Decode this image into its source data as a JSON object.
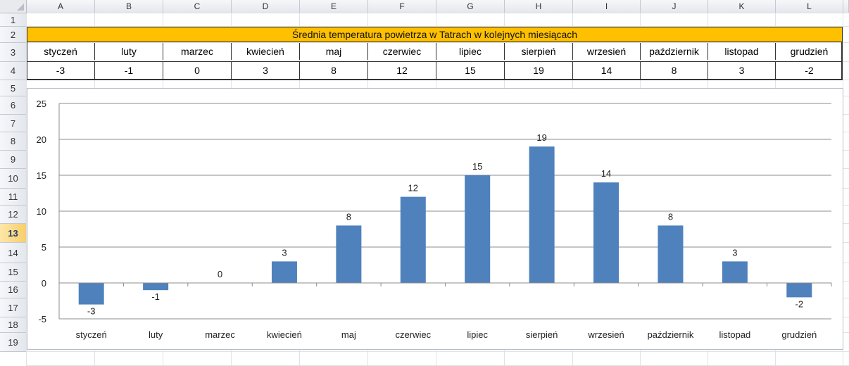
{
  "sheet": {
    "columns": [
      "A",
      "B",
      "C",
      "D",
      "E",
      "F",
      "G",
      "H",
      "I",
      "J",
      "K",
      "L"
    ],
    "rows": [
      "1",
      "2",
      "3",
      "4",
      "5",
      "6",
      "7",
      "8",
      "9",
      "10",
      "11",
      "12",
      "13",
      "14",
      "15",
      "16",
      "17",
      "18",
      "19"
    ],
    "active_row": "13",
    "title": "Średnia temperatura powietrza w Tatrach w kolejnych miesiącach",
    "months": [
      "styczeń",
      "luty",
      "marzec",
      "kwiecień",
      "maj",
      "czerwiec",
      "lipiec",
      "sierpień",
      "wrzesień",
      "październik",
      "listopad",
      "grudzień"
    ],
    "values": [
      "-3",
      "-1",
      "0",
      "3",
      "8",
      "12",
      "15",
      "19",
      "14",
      "8",
      "3",
      "-2"
    ],
    "title_fill_color": "#ffc000"
  },
  "chart_data": {
    "type": "bar",
    "categories": [
      "styczeń",
      "luty",
      "marzec",
      "kwiecień",
      "maj",
      "czerwiec",
      "lipiec",
      "sierpień",
      "wrzesień",
      "październik",
      "listopad",
      "grudzień"
    ],
    "values": [
      -3,
      -1,
      0,
      3,
      8,
      12,
      15,
      19,
      14,
      8,
      3,
      -2
    ],
    "ylim": [
      -5,
      25
    ],
    "yticks": [
      -5,
      0,
      5,
      10,
      15,
      20,
      25
    ],
    "grid": true,
    "data_labels": true,
    "legend": "none",
    "bar_color": "#4f81bd"
  }
}
